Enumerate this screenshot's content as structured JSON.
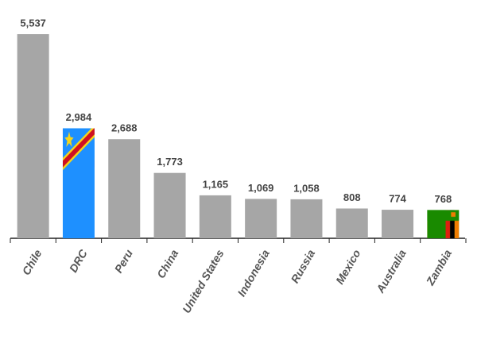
{
  "chart_data": {
    "type": "bar",
    "categories": [
      "Chile",
      "DRC",
      "Peru",
      "China",
      "United States",
      "Indonesia",
      "Russia",
      "Mexico",
      "Australia",
      "Zambia"
    ],
    "values": [
      5537,
      2984,
      2688,
      1773,
      1165,
      1069,
      1058,
      808,
      774,
      768
    ],
    "value_labels": [
      "5,537",
      "2,984",
      "2,688",
      "1,773",
      "1,165",
      "1,069",
      "1,058",
      "808",
      "774",
      "768"
    ],
    "colors": [
      "#a6a6a6",
      "url(#flag-drc)",
      "#a6a6a6",
      "#a6a6a6",
      "#a6a6a6",
      "#a6a6a6",
      "#a6a6a6",
      "#a6a6a6",
      "#a6a6a6",
      "url(#flag-zambia)"
    ]
  }
}
